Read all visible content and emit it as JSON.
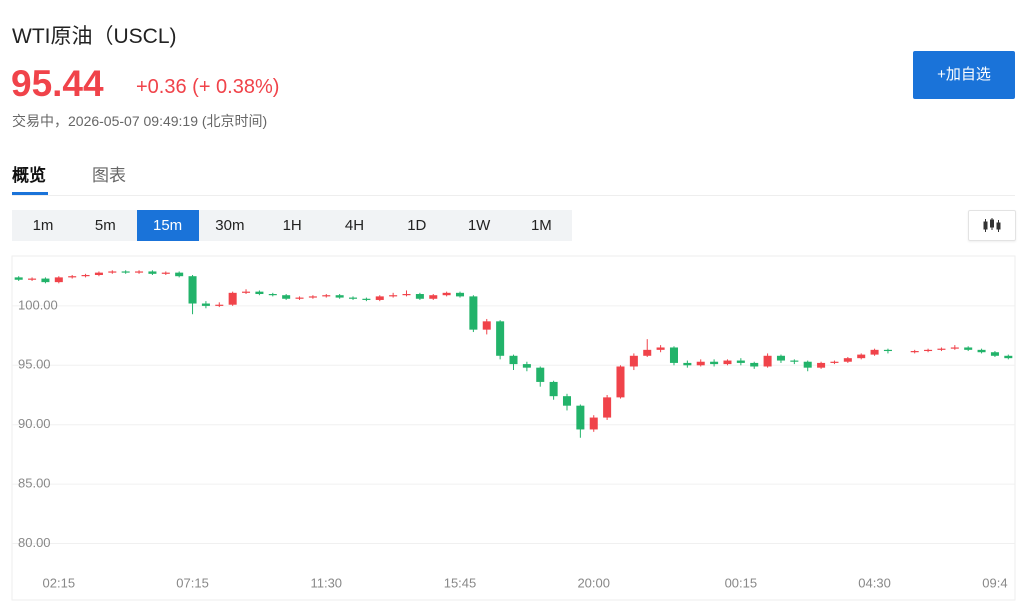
{
  "header": {
    "title": "WTI原油（USCL)",
    "price": "95.44",
    "change": "+0.36 (+ 0.38%)",
    "status": "交易中，2026-05-07 09:49:19 (北京时间)",
    "button": "+加自选"
  },
  "tabs": [
    "概览",
    "图表"
  ],
  "intervals": [
    "1m",
    "5m",
    "15m",
    "30m",
    "1H",
    "4H",
    "1D",
    "1W",
    "1M"
  ],
  "active_interval": 2,
  "chart_data": {
    "type": "candlestick",
    "up_color": "#f0434a",
    "down_color": "#22b36a",
    "grid": true,
    "ylim": [
      77.6,
      104.2
    ],
    "yticks": [
      {
        "value": 80,
        "label": "80.00"
      },
      {
        "value": 85,
        "label": "85.00"
      },
      {
        "value": 90,
        "label": "90.00"
      },
      {
        "value": 95,
        "label": "95.00"
      },
      {
        "value": 100,
        "label": "100.00"
      }
    ],
    "categories": [
      null,
      null,
      null,
      "02:15",
      null,
      null,
      null,
      null,
      null,
      null,
      null,
      null,
      null,
      "07:15",
      null,
      null,
      null,
      null,
      null,
      null,
      null,
      null,
      null,
      "11:30",
      null,
      null,
      null,
      null,
      null,
      null,
      null,
      null,
      null,
      "15:45",
      null,
      null,
      null,
      null,
      null,
      null,
      null,
      null,
      null,
      "20:00",
      null,
      null,
      null,
      null,
      null,
      null,
      null,
      null,
      null,
      null,
      "00:15",
      null,
      null,
      null,
      null,
      null,
      null,
      null,
      null,
      null,
      "04:30",
      null,
      null,
      null,
      null,
      null,
      null,
      null,
      null,
      "09:4",
      null
    ],
    "open": [
      102.4,
      102.2,
      102.3,
      102.0,
      102.4,
      102.5,
      102.6,
      102.8,
      102.9,
      102.8,
      102.9,
      102.7,
      102.8,
      102.5,
      100.2,
      100.0,
      100.1,
      101.1,
      101.2,
      101.0,
      100.9,
      100.6,
      100.7,
      100.8,
      100.9,
      100.7,
      100.6,
      100.5,
      100.8,
      100.9,
      101.0,
      100.6,
      100.9,
      101.1,
      100.8,
      98.0,
      98.7,
      95.8,
      95.1,
      94.8,
      93.6,
      92.4,
      91.6,
      89.6,
      90.6,
      92.3,
      94.9,
      95.8,
      96.3,
      96.5,
      95.2,
      95.0,
      95.3,
      95.1,
      95.4,
      95.2,
      94.9,
      95.8,
      95.4,
      95.3,
      94.8,
      95.2,
      95.3,
      95.6,
      95.9,
      96.3,
      null,
      96.1,
      96.2,
      96.3,
      96.4,
      96.5,
      96.3,
      96.1,
      95.8
    ],
    "high": [
      102.5,
      102.4,
      102.4,
      102.5,
      102.6,
      102.7,
      102.9,
      103.0,
      103.0,
      103.0,
      103.0,
      102.9,
      102.9,
      102.6,
      100.4,
      100.3,
      101.2,
      101.4,
      101.3,
      101.1,
      101.0,
      100.8,
      100.9,
      101.0,
      101.0,
      100.8,
      100.7,
      100.9,
      101.1,
      101.3,
      101.1,
      101.0,
      101.2,
      101.2,
      100.9,
      98.9,
      98.8,
      95.9,
      95.3,
      94.9,
      93.7,
      92.6,
      91.7,
      90.8,
      92.5,
      95.0,
      96.0,
      97.2,
      96.7,
      96.6,
      95.4,
      95.5,
      95.5,
      95.5,
      95.6,
      95.3,
      96.0,
      95.9,
      95.5,
      95.4,
      95.3,
      95.4,
      95.7,
      96.0,
      96.4,
      96.4,
      null,
      96.3,
      96.4,
      96.5,
      96.7,
      96.6,
      96.4,
      96.2,
      95.9
    ],
    "low": [
      102.1,
      102.1,
      101.9,
      101.9,
      102.3,
      102.4,
      102.5,
      102.7,
      102.7,
      102.7,
      102.6,
      102.6,
      102.4,
      99.3,
      99.8,
      99.9,
      100.0,
      101.0,
      100.9,
      100.8,
      100.5,
      100.5,
      100.6,
      100.7,
      100.6,
      100.5,
      100.4,
      100.4,
      100.7,
      100.8,
      100.5,
      100.5,
      100.8,
      100.7,
      97.8,
      97.6,
      95.5,
      94.6,
      94.5,
      93.2,
      92.1,
      91.2,
      88.9,
      89.4,
      90.4,
      92.2,
      94.6,
      95.7,
      96.1,
      95.0,
      94.8,
      94.9,
      94.9,
      95.0,
      95.0,
      94.7,
      94.8,
      95.2,
      95.1,
      94.5,
      94.7,
      95.1,
      95.2,
      95.5,
      95.8,
      96.0,
      null,
      96.0,
      96.1,
      96.2,
      96.3,
      96.2,
      96.0,
      95.7,
      95.5
    ],
    "close": [
      102.2,
      102.3,
      102.0,
      102.4,
      102.5,
      102.6,
      102.8,
      102.9,
      102.8,
      102.9,
      102.7,
      102.8,
      102.5,
      100.2,
      100.0,
      100.1,
      101.1,
      101.2,
      101.0,
      100.9,
      100.6,
      100.7,
      100.8,
      100.9,
      100.7,
      100.6,
      100.5,
      100.8,
      100.9,
      101.0,
      100.6,
      100.9,
      101.1,
      100.8,
      98.0,
      98.7,
      95.8,
      95.1,
      94.8,
      93.6,
      92.4,
      91.6,
      89.6,
      90.6,
      92.3,
      94.9,
      95.8,
      96.3,
      96.5,
      95.2,
      95.0,
      95.3,
      95.1,
      95.4,
      95.2,
      94.9,
      95.8,
      95.4,
      95.3,
      94.8,
      95.2,
      95.3,
      95.6,
      95.9,
      96.3,
      96.2,
      null,
      96.2,
      96.3,
      96.4,
      96.5,
      96.3,
      96.1,
      95.8,
      95.6
    ]
  }
}
